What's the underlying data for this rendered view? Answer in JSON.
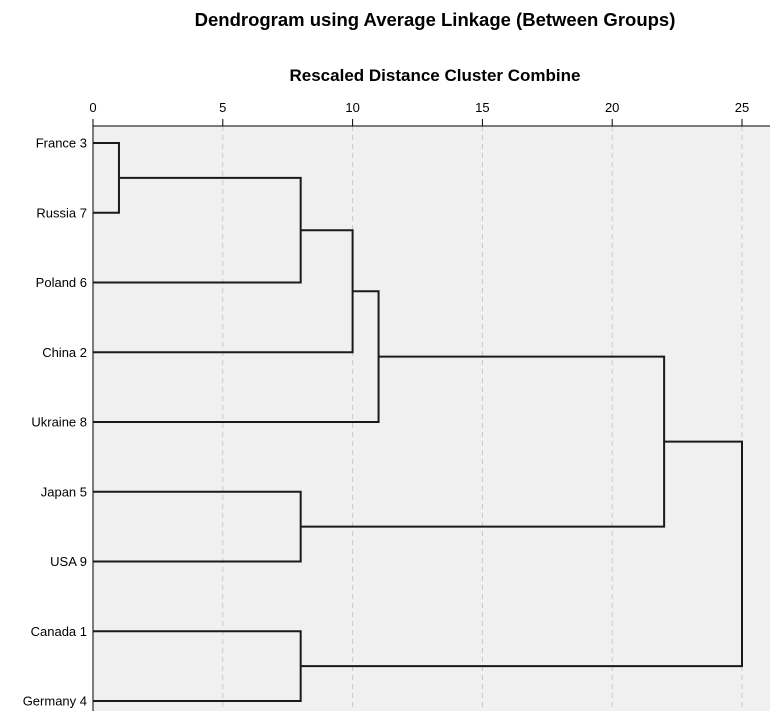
{
  "chart_data": {
    "type": "dendrogram",
    "title": "Dendrogram using Average Linkage (Between Groups)",
    "xlabel": "Rescaled Distance Cluster Combine",
    "xlim": [
      0,
      25
    ],
    "xticks": [
      0,
      5,
      10,
      15,
      20,
      25
    ],
    "grid": true,
    "leaves": [
      "France 3",
      "Russia 7",
      "Poland 6",
      "China 2",
      "Ukraine 8",
      "Japan 5",
      "USA 9",
      "Canada 1",
      "Germany 4"
    ],
    "merges": [
      {
        "left": "France 3",
        "right": "Russia 7",
        "distance": 1
      },
      {
        "left": "Japan 5",
        "right": "USA 9",
        "distance": 8
      },
      {
        "left": "Canada 1",
        "right": "Germany 4",
        "distance": 8
      },
      {
        "left": "France 3 + Russia 7",
        "right": "Poland 6",
        "distance": 8
      },
      {
        "left": "France 3 + Russia 7 + Poland 6",
        "right": "China 2",
        "distance": 10
      },
      {
        "left": "France 3 + Russia 7 + Poland 6 + China 2",
        "right": "Ukraine 8",
        "distance": 11
      },
      {
        "left": "France 3 + Russia 7 + Poland 6 + China 2 + Ukraine 8",
        "right": "Japan 5 + USA 9",
        "distance": 22
      },
      {
        "left": "France 3 + Russia 7 + Poland 6 + China 2 + Ukraine 8 + Japan 5 + USA 9",
        "right": "Canada 1 + Germany 4",
        "distance": 25
      }
    ]
  }
}
